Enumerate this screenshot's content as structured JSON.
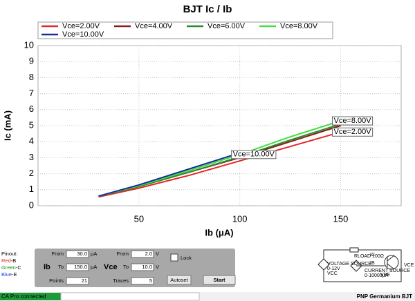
{
  "chart_data": {
    "type": "line",
    "title": "BJT Ic / Ib",
    "x_label": "Ib (μA)",
    "y_label": "Ic (mA)",
    "x": [
      30,
      50,
      75,
      100,
      125,
      150
    ],
    "series": [
      {
        "name": "Vce=2.00V",
        "color": "#e02828",
        "values": [
          0.55,
          1.1,
          1.9,
          2.8,
          3.7,
          4.6
        ]
      },
      {
        "name": "Vce=4.00V",
        "color": "#8b1c1c",
        "values": [
          0.6,
          1.2,
          2.1,
          3.0,
          4.0,
          5.0
        ]
      },
      {
        "name": "Vce=6.00V",
        "color": "#2a8a2a",
        "values": [
          0.6,
          1.2,
          2.1,
          3.05,
          4.1,
          5.1
        ]
      },
      {
        "name": "Vce=8.00V",
        "color": "#44dd44",
        "values": [
          0.6,
          1.25,
          2.2,
          3.2,
          4.3,
          5.3
        ]
      },
      {
        "name": "Vce=10.00V",
        "color": "#1a2a9a",
        "values": [
          0.6,
          1.3,
          2.3,
          3.3,
          null,
          null
        ]
      }
    ],
    "annotations": [
      {
        "text": "Vce=8.00V",
        "x": 150,
        "y": 5.3
      },
      {
        "text": "Vce=2.00V",
        "x": 150,
        "y": 4.6
      },
      {
        "text": "Vce=10.00V",
        "x": 100,
        "y": 3.2
      }
    ],
    "xlim": [
      0,
      180
    ],
    "xticks": [
      50,
      100,
      150
    ],
    "ylim": [
      0,
      10
    ],
    "yticks": [
      0,
      1,
      2,
      3,
      4,
      5,
      6,
      7,
      8,
      9,
      10
    ],
    "grid": true
  },
  "pinout": {
    "title": "Pinout:",
    "items": [
      {
        "color": "Red",
        "pin": "-B"
      },
      {
        "color": "Green",
        "pin": "-C"
      },
      {
        "color": "Blue",
        "pin": "-E"
      }
    ]
  },
  "controls": {
    "ib": {
      "label": "Ib",
      "from_label": "From",
      "from": "30.0",
      "from_unit": "μA",
      "to_label": "To",
      "to": "150.0",
      "to_unit": "μA",
      "count_label": "Points",
      "count": 21
    },
    "vce": {
      "label": "Vce",
      "from_label": "From",
      "from": "2.0",
      "from_unit": "V",
      "to_label": "To",
      "to": "10.0",
      "to_unit": "V",
      "count_label": "Traces",
      "count": 5
    },
    "lock": "Lock",
    "autoset": "Autoset",
    "start": "Start"
  },
  "circuit": {
    "voltage_source": "VOLTAGE SOURCE",
    "voltage_range": "0-12V",
    "vcc": "VCC",
    "rload": "RLOAD 100Ω",
    "ic": "IC",
    "ib": "IB",
    "current_source": "CURRENT SOURCE",
    "current_range": "0-10000μA",
    "vbe": "VBE",
    "vce": "VCE"
  },
  "status": {
    "connection": "CA Pro connected",
    "device": "PNP Germanium BJT"
  }
}
